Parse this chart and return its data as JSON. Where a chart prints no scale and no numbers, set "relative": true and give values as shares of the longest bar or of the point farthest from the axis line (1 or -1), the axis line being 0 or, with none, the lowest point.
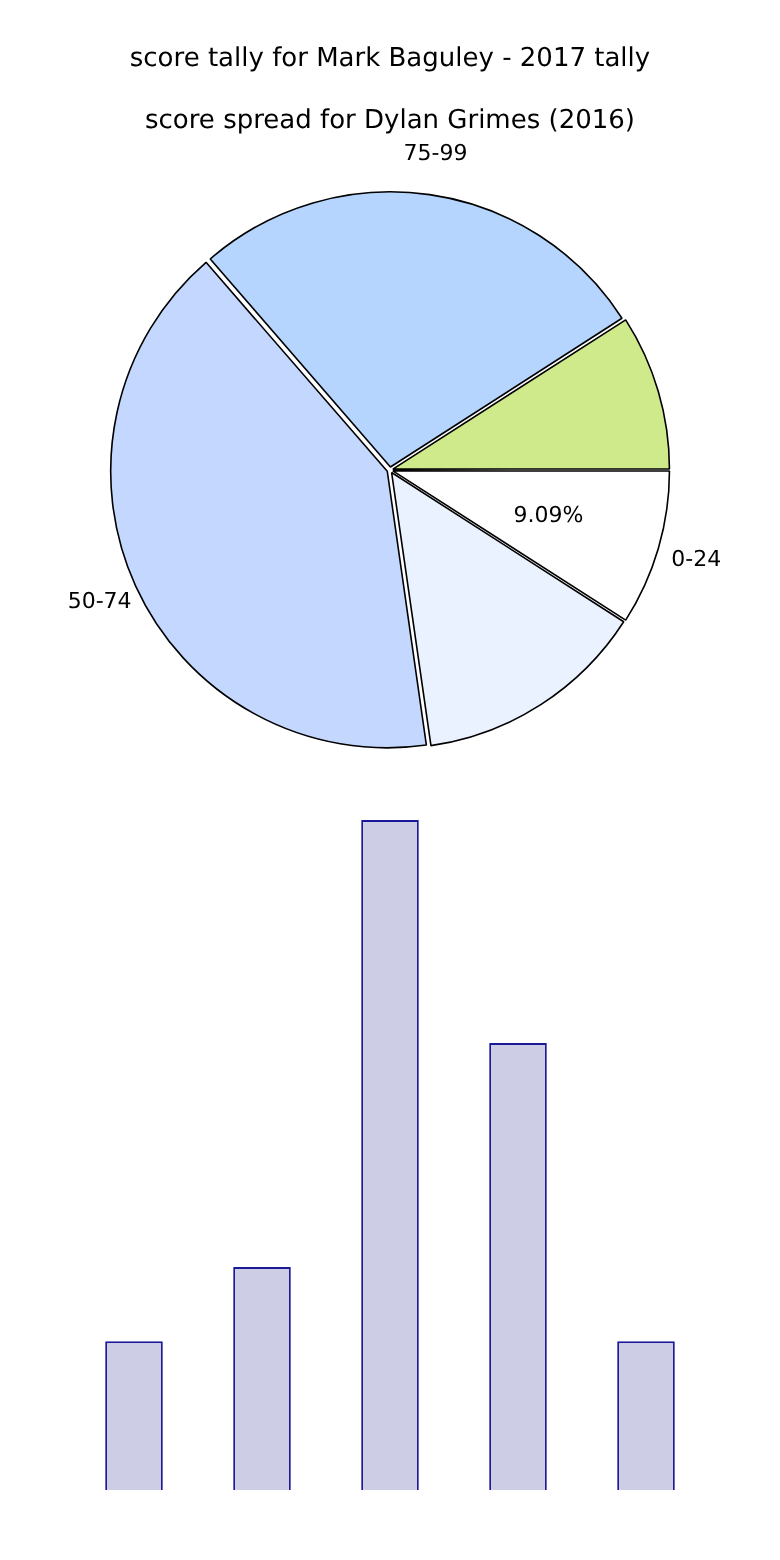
{
  "chart_data": [
    {
      "type": "pie",
      "title": "score tally for Mark Baguley - 2017 tally",
      "subtitle": "score spread for Dylan Grimes (2016)",
      "categories": [
        "0-24",
        null,
        "50-74",
        "75-99",
        null
      ],
      "values": [
        9.09,
        13.64,
        40.91,
        27.27,
        9.09
      ],
      "colors": [
        "#ffffff",
        "#eaf1ff",
        "#c4d8ff",
        "#b5d5ff",
        "#ceea8a"
      ],
      "value_labels": [
        "9.09%",
        null,
        null,
        null,
        null
      ]
    },
    {
      "type": "bar",
      "relative": true,
      "categories": [
        null,
        null,
        null,
        null,
        null
      ],
      "values": [
        0.222,
        0.333,
        1,
        0.667,
        0.222
      ],
      "color": "#cdcde6"
    }
  ]
}
